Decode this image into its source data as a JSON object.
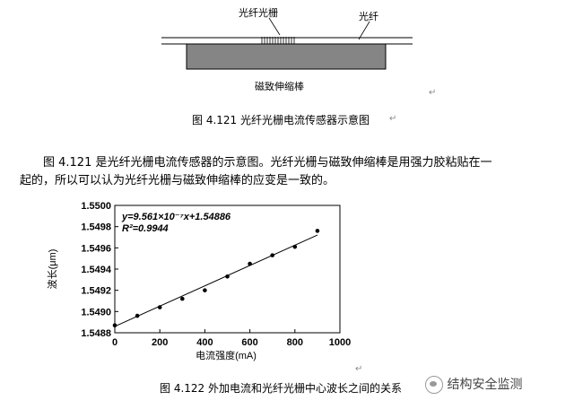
{
  "diagram": {
    "label_grating": "光纤光栅",
    "label_fiber": "光纤",
    "label_rod": "磁致伸缩棒",
    "caption": "图 4.121    光纤光栅电流传感器示意图"
  },
  "paragraph": {
    "line1": "图 4.121 是光纤光栅电流传感器的示意图。光纤光栅与磁致伸缩棒是用强力胶粘贴在一",
    "line2": "起的，所以可以认为光纤光栅与磁致伸缩棒的应变是一致的。"
  },
  "chart_data": {
    "type": "scatter",
    "xlabel": "电流强度(mA)",
    "ylabel": "波长(μm)",
    "xlim": [
      0,
      1000
    ],
    "ylim": [
      1.5488,
      1.55
    ],
    "xticks": [
      "0",
      "200",
      "400",
      "600",
      "800",
      "1000"
    ],
    "yticks": [
      "1.5488",
      "1.5490",
      "1.5492",
      "1.5494",
      "1.5496",
      "1.5498",
      "1.5500"
    ],
    "equation": "y=9.561×10⁻⁷x+1.54886",
    "r_squared": "R²=0.9944",
    "fit": {
      "slope": 9.561e-07,
      "intercept": 1.54886,
      "x_range": [
        0,
        900
      ]
    },
    "points": [
      {
        "x": 0,
        "y": 1.54887
      },
      {
        "x": 100,
        "y": 1.54896
      },
      {
        "x": 200,
        "y": 1.54904
      },
      {
        "x": 300,
        "y": 1.54912
      },
      {
        "x": 400,
        "y": 1.5492
      },
      {
        "x": 500,
        "y": 1.54933
      },
      {
        "x": 600,
        "y": 1.54945
      },
      {
        "x": 700,
        "y": 1.54953
      },
      {
        "x": 800,
        "y": 1.54961
      },
      {
        "x": 900,
        "y": 1.54976
      }
    ],
    "caption": "图 4.122    外加电流和光纤光栅中心波长之间的关系"
  },
  "watermark": {
    "text": "结构安全监测",
    "icon": "wechat-icon"
  }
}
